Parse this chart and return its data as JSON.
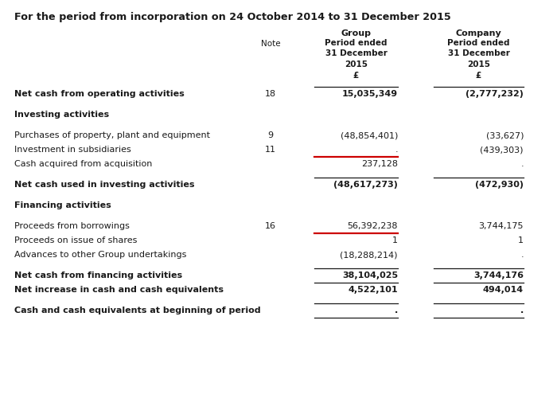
{
  "title": "For the period from incorporation on 24 October 2014 to 31 December 2015",
  "rows": [
    {
      "label": "Net cash from operating activities",
      "note": "18",
      "group": "15,035,349",
      "company": "(2,777,232)",
      "bold": true,
      "top_line_above": true,
      "spacer": false,
      "red_underline": false
    },
    {
      "label": "",
      "note": "",
      "group": "",
      "company": "",
      "bold": false,
      "top_line_above": false,
      "spacer": true,
      "red_underline": false
    },
    {
      "label": "Investing activities",
      "note": "",
      "group": "",
      "company": "",
      "bold": true,
      "top_line_above": false,
      "spacer": false,
      "red_underline": false
    },
    {
      "label": "",
      "note": "",
      "group": "",
      "company": "",
      "bold": false,
      "top_line_above": false,
      "spacer": true,
      "red_underline": false
    },
    {
      "label": "Purchases of property, plant and equipment",
      "note": "9",
      "group": "(48,854,401)",
      "company": "(33,627)",
      "bold": false,
      "top_line_above": false,
      "spacer": false,
      "red_underline": false
    },
    {
      "label": "Investment in subsidiaries",
      "note": "11",
      "group": ".",
      "company": "(439,303)",
      "bold": false,
      "top_line_above": false,
      "spacer": false,
      "red_underline": true
    },
    {
      "label": "Cash acquired from acquisition",
      "note": "",
      "group": "237,128",
      "company": ".",
      "bold": false,
      "top_line_above": false,
      "spacer": false,
      "red_underline": false
    },
    {
      "label": "",
      "note": "",
      "group": "",
      "company": "",
      "bold": false,
      "top_line_above": false,
      "spacer": true,
      "red_underline": false
    },
    {
      "label": "Net cash used in investing activities",
      "note": "",
      "group": "(48,617,273)",
      "company": "(472,930)",
      "bold": true,
      "top_line_above": true,
      "spacer": false,
      "red_underline": false
    },
    {
      "label": "",
      "note": "",
      "group": "",
      "company": "",
      "bold": false,
      "top_line_above": false,
      "spacer": true,
      "red_underline": false
    },
    {
      "label": "Financing activities",
      "note": "",
      "group": "",
      "company": "",
      "bold": true,
      "top_line_above": false,
      "spacer": false,
      "red_underline": false
    },
    {
      "label": "",
      "note": "",
      "group": "",
      "company": "",
      "bold": false,
      "top_line_above": false,
      "spacer": true,
      "red_underline": false
    },
    {
      "label": "Proceeds from borrowings",
      "note": "16",
      "group": "56,392,238",
      "company": "3,744,175",
      "bold": false,
      "top_line_above": false,
      "spacer": false,
      "red_underline": true
    },
    {
      "label": "Proceeds on issue of shares",
      "note": "",
      "group": "1",
      "company": "1",
      "bold": false,
      "top_line_above": false,
      "spacer": false,
      "red_underline": false
    },
    {
      "label": "Advances to other Group undertakings",
      "note": "",
      "group": "(18,288,214)",
      "company": ".",
      "bold": false,
      "top_line_above": false,
      "spacer": false,
      "red_underline": false
    },
    {
      "label": "",
      "note": "",
      "group": "",
      "company": "",
      "bold": false,
      "top_line_above": false,
      "spacer": true,
      "red_underline": false
    },
    {
      "label": "Net cash from financing activities",
      "note": "",
      "group": "38,104,025",
      "company": "3,744,176",
      "bold": true,
      "top_line_above": true,
      "spacer": false,
      "red_underline": false
    },
    {
      "label": "Net increase in cash and cash equivalents",
      "note": "",
      "group": "4,522,101",
      "company": "494,014",
      "bold": true,
      "top_line_above": true,
      "spacer": false,
      "red_underline": false
    },
    {
      "label": "",
      "note": "",
      "group": "",
      "company": "",
      "bold": false,
      "top_line_above": false,
      "spacer": true,
      "red_underline": false
    },
    {
      "label": "Cash and cash equivalents at beginning of period",
      "note": "",
      "group": ".",
      "company": ".",
      "bold": true,
      "top_line_above": true,
      "spacer": false,
      "red_underline": false
    }
  ],
  "bg_color": "#ffffff",
  "text_color": "#1a1a1a",
  "line_color": "#1a1a1a",
  "red_color": "#cc0000"
}
